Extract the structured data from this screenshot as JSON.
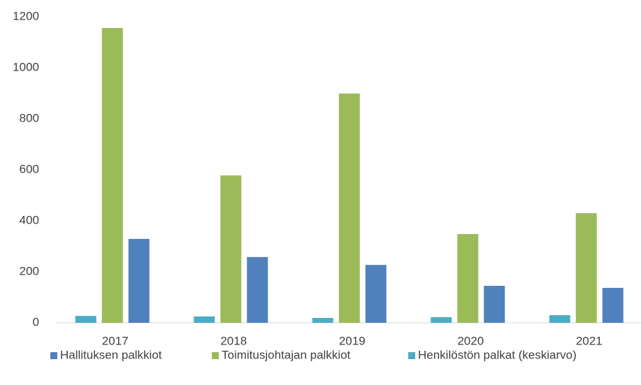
{
  "chart_data": {
    "type": "bar",
    "categories": [
      "2017",
      "2018",
      "2019",
      "2020",
      "2021"
    ],
    "series": [
      {
        "name": "Hallituksen palkkiot",
        "color": "#4f81bd",
        "values": [
          329,
          258,
          227,
          145,
          137
        ]
      },
      {
        "name": "Toimitusjohtajan palkkiot",
        "color": "#9bbb59",
        "values": [
          1156,
          578,
          899,
          348,
          430
        ]
      },
      {
        "name": "Henkilöstön palkat (keskiarvo)",
        "color": "#4bacc6",
        "values": [
          27,
          25,
          19,
          22,
          30
        ]
      }
    ],
    "ylim": [
      0,
      1200
    ],
    "yticks": [
      0,
      200,
      400,
      600,
      800,
      1000,
      1200
    ],
    "grid": false,
    "legend": "bottom"
  }
}
